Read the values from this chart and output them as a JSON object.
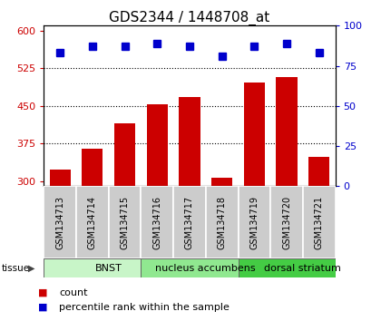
{
  "title": "GDS2344 / 1448708_at",
  "samples": [
    "GSM134713",
    "GSM134714",
    "GSM134715",
    "GSM134716",
    "GSM134717",
    "GSM134718",
    "GSM134719",
    "GSM134720",
    "GSM134721"
  ],
  "counts": [
    323,
    365,
    415,
    453,
    468,
    307,
    497,
    508,
    348
  ],
  "percentiles": [
    83,
    87,
    87,
    89,
    87,
    81,
    87,
    89,
    83
  ],
  "ylim_left": [
    290,
    610
  ],
  "ylim_right": [
    0,
    100
  ],
  "yticks_left": [
    300,
    375,
    450,
    525,
    600
  ],
  "yticks_right": [
    0,
    25,
    50,
    75,
    100
  ],
  "groups": [
    {
      "label": "BNST",
      "start": 0,
      "end": 3,
      "color": "#c8f5c8"
    },
    {
      "label": "nucleus accumbens",
      "start": 3,
      "end": 6,
      "color": "#90e890"
    },
    {
      "label": "dorsal striatum",
      "start": 6,
      "end": 9,
      "color": "#44cc44"
    }
  ],
  "bar_color": "#cc0000",
  "dot_color": "#0000cc",
  "left_tick_color": "#cc0000",
  "right_tick_color": "#0000cc",
  "grid_color": "#000000",
  "bg_color": "#ffffff",
  "sample_bg_color": "#cccccc",
  "title_fontsize": 11,
  "tick_fontsize": 8,
  "sample_fontsize": 7,
  "group_fontsize": 8,
  "legend_fontsize": 8
}
